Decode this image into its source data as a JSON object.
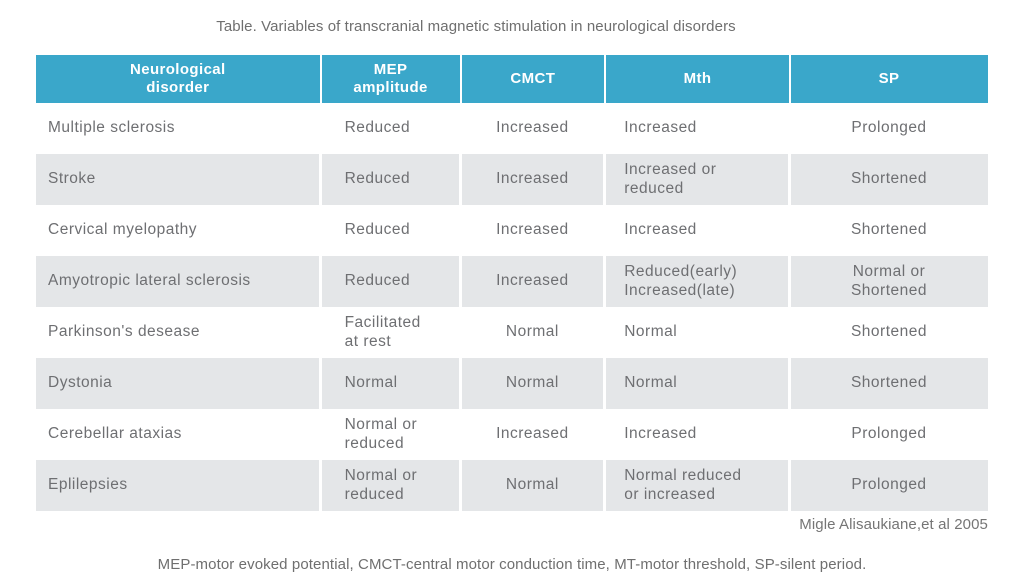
{
  "title": "Table. Variables of transcranial magnetic stimulation in neurological disorders",
  "colors": {
    "header_bg": "#3aa7ca",
    "row_alt_bg": "#e4e6e8",
    "body_text": "#6e6f72",
    "header_text": "#ffffff"
  },
  "table": {
    "headers": [
      "Neurological\ndisorder",
      "MEP\namplitude",
      "CMCT",
      "Mth",
      "SP"
    ],
    "rows": [
      [
        "Multiple sclerosis",
        "Reduced",
        "Increased",
        "Increased",
        "Prolonged"
      ],
      [
        "Stroke",
        "Reduced",
        "Increased",
        "Increased or\nreduced",
        "Shortened"
      ],
      [
        "Cervical myelopathy",
        "Reduced",
        "Increased",
        "Increased",
        "Shortened"
      ],
      [
        "Amyotropic lateral sclerosis",
        "Reduced",
        "Increased",
        "Reduced(early)\nIncreased(late)",
        "Normal or\nShortened"
      ],
      [
        "Parkinson's desease",
        "Facilitated\nat rest",
        "Normal",
        "Normal",
        "Shortened"
      ],
      [
        "Dystonia",
        "Normal",
        "Normal",
        "Normal",
        "Shortened"
      ],
      [
        "Cerebellar ataxias",
        "Normal or\nreduced",
        "Increased",
        "Increased",
        "Prolonged"
      ],
      [
        "Eplilepsies",
        "Normal or\nreduced",
        "Normal",
        "Normal  reduced\nor increased",
        "Prolonged"
      ]
    ]
  },
  "attribution": "Migle Alisaukiane,et al 2005",
  "footnote": "MEP-motor evoked potential, CMCT-central motor conduction time, MT-motor threshold, SP-silent period."
}
